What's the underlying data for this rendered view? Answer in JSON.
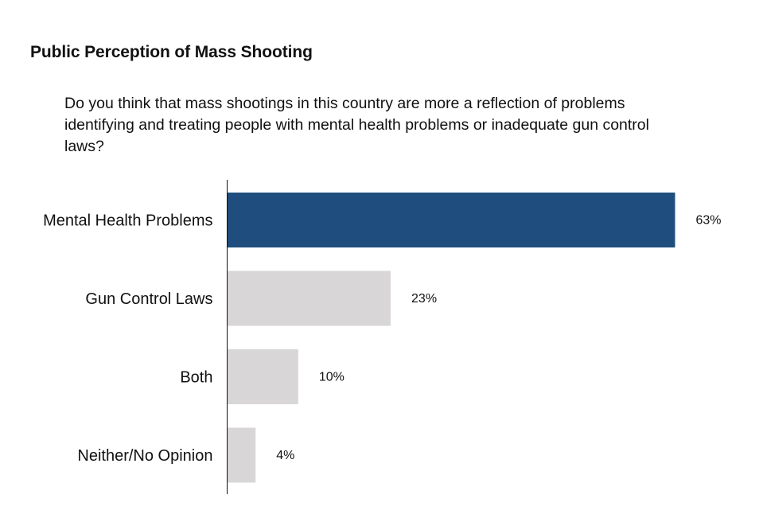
{
  "chart_data": {
    "type": "bar",
    "orientation": "horizontal",
    "title": "Public Perception of Mass Shooting",
    "subtitle": "Do you think that mass shootings in this country are more a reflection of problems identifying and treating people with mental health problems or inadequate gun control laws?",
    "categories": [
      "Mental Health Problems",
      "Gun Control Laws",
      "Both",
      "Neither/No Opinion"
    ],
    "values": [
      63,
      23,
      10,
      4
    ],
    "value_labels": [
      "63%",
      "23%",
      "10%",
      "4%"
    ],
    "unit": "%",
    "xlim": [
      0,
      63
    ],
    "grid": false,
    "legend": "none",
    "colors": {
      "highlight": "#1f4e7e",
      "default": "#d8d6d6",
      "axis": "#111111"
    },
    "highlight_index": 0
  }
}
